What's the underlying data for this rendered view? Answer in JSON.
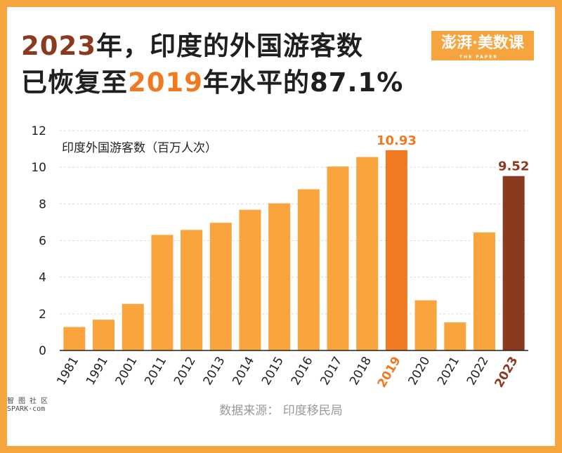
{
  "header": {
    "title_line1_year": "2023",
    "title_line1_rest": "年，印度的外国游客数",
    "title_line2_start": "已恢复至",
    "title_line2_year": "2019",
    "title_line2_end": "年水平的87.1%"
  },
  "logo": {
    "text": "澎湃·美数课",
    "subtext": "THE PAPER"
  },
  "watermark": {
    "line1": "智 图 社 区",
    "line2": "SPARK·com"
  },
  "source": "数据来源：  印度移民局",
  "colors": {
    "bar": "#f9a43c",
    "highlight_2019": "#ef7a22",
    "highlight_2023": "#8b3a20",
    "frame": "#f5a43e"
  },
  "chart_data": {
    "type": "bar",
    "ylabel": "印度外国游客数（百万人次）",
    "ylim": [
      0,
      12
    ],
    "yticks": [
      0,
      2,
      4,
      6,
      8,
      10,
      12
    ],
    "grid": true,
    "categories": [
      "1981",
      "1991",
      "2001",
      "2011",
      "2012",
      "2013",
      "2014",
      "2015",
      "2016",
      "2017",
      "2018",
      "2019",
      "2020",
      "2021",
      "2022",
      "2023"
    ],
    "values": [
      1.28,
      1.68,
      2.54,
      6.31,
      6.58,
      6.97,
      7.68,
      8.03,
      8.8,
      10.04,
      10.56,
      10.93,
      2.74,
      1.53,
      6.44,
      9.52
    ],
    "highlights": {
      "2019": {
        "label": "10.93",
        "color": "#ef7a22"
      },
      "2023": {
        "label": "9.52",
        "color": "#8b3a20"
      }
    }
  }
}
